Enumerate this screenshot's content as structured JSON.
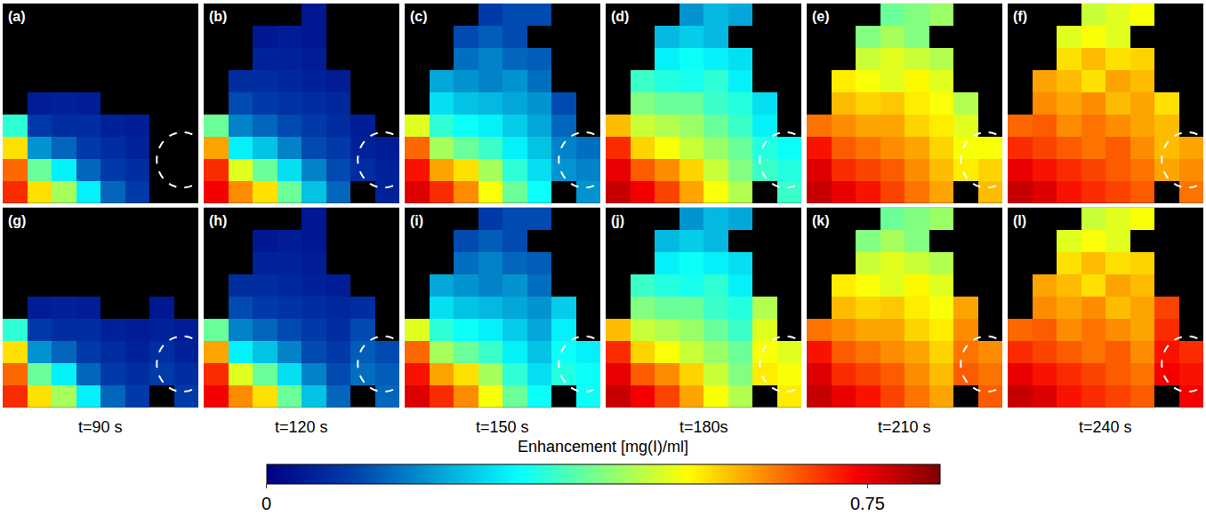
{
  "chart_data": {
    "type": "heatmap",
    "color": "Jet",
    "colorbar": {
      "title": "Enhancement [mg(I)/ml]",
      "range": [
        0,
        0.84
      ],
      "ticks": [
        0,
        0.75
      ]
    },
    "columns": [
      "t=90 s",
      "t=120 s",
      "t=150 s",
      "t=180s",
      "t=210 s",
      "t=240 s"
    ],
    "panels": [
      {
        "label": "(a)",
        "cells": [
          [
            null,
            null,
            null,
            null,
            null,
            null,
            null,
            null
          ],
          [
            null,
            null,
            null,
            null,
            null,
            null,
            null,
            null
          ],
          [
            null,
            null,
            null,
            null,
            null,
            null,
            null,
            null
          ],
          [
            null,
            null,
            null,
            null,
            null,
            null,
            null,
            null
          ],
          [
            null,
            0.05,
            0.06,
            0.05,
            null,
            null,
            null,
            null
          ],
          [
            0.35,
            0.1,
            0.08,
            0.08,
            0.06,
            0.05,
            null,
            null
          ],
          [
            0.55,
            0.2,
            0.15,
            0.1,
            0.08,
            0.06,
            null,
            null
          ],
          [
            0.65,
            0.4,
            0.3,
            0.15,
            0.1,
            0.08,
            null,
            null
          ],
          [
            0.7,
            0.55,
            0.45,
            0.3,
            0.15,
            0.1,
            null,
            null
          ]
        ]
      },
      {
        "label": "(b)",
        "cells": [
          [
            null,
            null,
            null,
            null,
            0.04,
            null,
            null,
            null
          ],
          [
            null,
            null,
            0.04,
            0.05,
            0.04,
            null,
            null,
            null
          ],
          [
            null,
            null,
            0.06,
            0.06,
            0.05,
            null,
            null,
            null
          ],
          [
            null,
            0.08,
            0.08,
            0.07,
            0.06,
            0.05,
            null,
            null
          ],
          [
            null,
            0.12,
            0.1,
            0.09,
            0.08,
            0.07,
            null,
            null
          ],
          [
            0.4,
            0.18,
            0.15,
            0.12,
            0.1,
            0.08,
            0.05,
            null
          ],
          [
            0.6,
            0.3,
            0.25,
            0.18,
            0.12,
            0.1,
            0.06,
            0.05
          ],
          [
            0.7,
            0.5,
            0.4,
            0.28,
            0.18,
            0.12,
            0.08,
            0.06
          ],
          [
            0.74,
            0.62,
            0.55,
            0.4,
            0.25,
            0.15,
            null,
            0.06
          ]
        ]
      },
      {
        "label": "(c)",
        "cells": [
          [
            null,
            null,
            null,
            0.1,
            0.12,
            0.12,
            null,
            null
          ],
          [
            null,
            null,
            0.12,
            0.14,
            0.12,
            null,
            null,
            null
          ],
          [
            null,
            null,
            0.16,
            0.18,
            0.15,
            0.14,
            null,
            null
          ],
          [
            null,
            0.22,
            0.2,
            0.18,
            0.2,
            0.16,
            null,
            null
          ],
          [
            null,
            0.28,
            0.25,
            0.24,
            0.22,
            0.2,
            0.12,
            null
          ],
          [
            0.5,
            0.35,
            0.32,
            0.3,
            0.26,
            0.22,
            0.15,
            null
          ],
          [
            0.65,
            0.45,
            0.4,
            0.36,
            0.3,
            0.25,
            0.18,
            0.16
          ],
          [
            0.72,
            0.6,
            0.55,
            0.45,
            0.35,
            0.28,
            0.2,
            0.18
          ],
          [
            0.76,
            0.7,
            0.62,
            0.52,
            0.4,
            0.32,
            null,
            0.2
          ]
        ]
      },
      {
        "label": "(d)",
        "cells": [
          [
            null,
            null,
            null,
            0.2,
            0.24,
            0.22,
            null,
            null
          ],
          [
            null,
            null,
            0.24,
            0.26,
            0.24,
            null,
            null,
            null
          ],
          [
            null,
            null,
            0.3,
            0.32,
            0.3,
            0.28,
            null,
            null
          ],
          [
            null,
            0.36,
            0.34,
            0.33,
            0.35,
            0.3,
            null,
            null
          ],
          [
            null,
            0.42,
            0.4,
            0.4,
            0.36,
            0.34,
            0.28,
            null
          ],
          [
            0.58,
            0.48,
            0.46,
            0.44,
            0.4,
            0.36,
            0.3,
            null
          ],
          [
            0.7,
            0.56,
            0.52,
            0.48,
            0.44,
            0.4,
            0.34,
            0.32
          ],
          [
            0.75,
            0.66,
            0.62,
            0.56,
            0.48,
            0.42,
            0.36,
            0.34
          ],
          [
            0.78,
            0.74,
            0.68,
            0.6,
            0.52,
            0.46,
            null,
            0.36
          ]
        ]
      },
      {
        "label": "(e)",
        "cells": [
          [
            null,
            null,
            null,
            0.4,
            0.42,
            0.44,
            null,
            null
          ],
          [
            null,
            null,
            0.42,
            0.45,
            0.42,
            null,
            null,
            null
          ],
          [
            null,
            null,
            0.48,
            0.5,
            0.48,
            0.46,
            null,
            null
          ],
          [
            null,
            0.54,
            0.52,
            0.5,
            0.53,
            0.5,
            null,
            null
          ],
          [
            null,
            0.58,
            0.56,
            0.57,
            0.54,
            0.52,
            0.46,
            null
          ],
          [
            0.64,
            0.62,
            0.6,
            0.6,
            0.56,
            0.54,
            0.5,
            null
          ],
          [
            0.72,
            0.66,
            0.64,
            0.62,
            0.6,
            0.56,
            0.52,
            0.52
          ],
          [
            0.76,
            0.7,
            0.68,
            0.66,
            0.62,
            0.58,
            0.54,
            0.56
          ],
          [
            0.78,
            0.75,
            0.72,
            0.68,
            0.64,
            0.6,
            null,
            0.58
          ]
        ]
      },
      {
        "label": "(f)",
        "cells": [
          [
            null,
            null,
            null,
            0.48,
            0.5,
            0.52,
            null,
            null
          ],
          [
            null,
            null,
            0.5,
            0.52,
            0.5,
            null,
            null,
            null
          ],
          [
            null,
            null,
            0.55,
            0.58,
            0.55,
            0.56,
            null,
            null
          ],
          [
            null,
            0.6,
            0.58,
            0.55,
            0.6,
            0.58,
            null,
            null
          ],
          [
            null,
            0.62,
            0.6,
            0.62,
            0.58,
            0.6,
            0.55,
            null
          ],
          [
            0.65,
            0.66,
            0.62,
            0.64,
            0.62,
            0.6,
            0.58,
            null
          ],
          [
            0.7,
            0.68,
            0.66,
            0.64,
            0.66,
            0.62,
            0.58,
            0.6
          ],
          [
            0.75,
            0.72,
            0.7,
            0.68,
            0.66,
            0.64,
            0.6,
            0.62
          ],
          [
            0.78,
            0.76,
            0.72,
            0.7,
            0.68,
            0.66,
            null,
            0.64
          ]
        ]
      },
      {
        "label": "(g)",
        "cells": [
          [
            null,
            null,
            null,
            null,
            null,
            null,
            null,
            null
          ],
          [
            null,
            null,
            null,
            null,
            null,
            null,
            null,
            null
          ],
          [
            null,
            null,
            null,
            null,
            null,
            null,
            null,
            null
          ],
          [
            null,
            null,
            null,
            null,
            null,
            null,
            null,
            null
          ],
          [
            null,
            0.05,
            0.06,
            0.05,
            null,
            null,
            0.04,
            null
          ],
          [
            0.35,
            0.1,
            0.08,
            0.08,
            0.06,
            0.05,
            0.06,
            0.05
          ],
          [
            0.55,
            0.2,
            0.15,
            0.1,
            0.08,
            0.06,
            0.08,
            0.06
          ],
          [
            0.65,
            0.4,
            0.3,
            0.15,
            0.1,
            0.08,
            0.1,
            0.08
          ],
          [
            0.7,
            0.55,
            0.45,
            0.3,
            0.15,
            0.1,
            null,
            0.1
          ]
        ]
      },
      {
        "label": "(h)",
        "cells": [
          [
            null,
            null,
            null,
            null,
            0.04,
            null,
            null,
            null
          ],
          [
            null,
            null,
            0.04,
            0.05,
            0.04,
            null,
            null,
            null
          ],
          [
            null,
            null,
            0.06,
            0.06,
            0.05,
            null,
            null,
            null
          ],
          [
            null,
            0.08,
            0.08,
            0.07,
            0.06,
            0.05,
            null,
            null
          ],
          [
            null,
            0.12,
            0.1,
            0.09,
            0.08,
            0.07,
            0.08,
            null
          ],
          [
            0.4,
            0.18,
            0.15,
            0.12,
            0.1,
            0.08,
            0.12,
            null
          ],
          [
            0.6,
            0.3,
            0.25,
            0.18,
            0.12,
            0.1,
            0.14,
            0.12
          ],
          [
            0.7,
            0.5,
            0.4,
            0.28,
            0.18,
            0.12,
            0.16,
            0.14
          ],
          [
            0.74,
            0.62,
            0.55,
            0.4,
            0.25,
            0.15,
            null,
            0.15
          ]
        ]
      },
      {
        "label": "(i)",
        "cells": [
          [
            null,
            null,
            null,
            0.1,
            0.12,
            0.12,
            null,
            null
          ],
          [
            null,
            null,
            0.12,
            0.14,
            0.12,
            null,
            null,
            null
          ],
          [
            null,
            null,
            0.16,
            0.18,
            0.15,
            0.14,
            null,
            null
          ],
          [
            null,
            0.22,
            0.2,
            0.18,
            0.2,
            0.16,
            null,
            null
          ],
          [
            null,
            0.28,
            0.25,
            0.24,
            0.22,
            0.2,
            0.26,
            null
          ],
          [
            0.5,
            0.35,
            0.32,
            0.3,
            0.26,
            0.22,
            0.3,
            null
          ],
          [
            0.65,
            0.45,
            0.4,
            0.36,
            0.3,
            0.25,
            0.32,
            0.3
          ],
          [
            0.72,
            0.6,
            0.55,
            0.45,
            0.35,
            0.28,
            0.34,
            0.32
          ],
          [
            0.76,
            0.7,
            0.62,
            0.52,
            0.4,
            0.32,
            null,
            0.32
          ]
        ]
      },
      {
        "label": "(j)",
        "cells": [
          [
            null,
            null,
            null,
            0.2,
            0.24,
            0.22,
            null,
            null
          ],
          [
            null,
            null,
            0.24,
            0.26,
            0.24,
            null,
            null,
            null
          ],
          [
            null,
            null,
            0.3,
            0.32,
            0.3,
            0.28,
            null,
            null
          ],
          [
            null,
            0.36,
            0.34,
            0.33,
            0.35,
            0.3,
            null,
            null
          ],
          [
            null,
            0.42,
            0.4,
            0.4,
            0.36,
            0.34,
            0.46,
            null
          ],
          [
            0.58,
            0.48,
            0.46,
            0.44,
            0.4,
            0.36,
            0.5,
            null
          ],
          [
            0.7,
            0.56,
            0.52,
            0.48,
            0.44,
            0.4,
            0.52,
            0.5
          ],
          [
            0.75,
            0.66,
            0.62,
            0.56,
            0.48,
            0.42,
            0.54,
            0.52
          ],
          [
            0.78,
            0.74,
            0.68,
            0.6,
            0.52,
            0.46,
            null,
            0.54
          ]
        ]
      },
      {
        "label": "(k)",
        "cells": [
          [
            null,
            null,
            null,
            0.4,
            0.42,
            0.44,
            null,
            null
          ],
          [
            null,
            null,
            0.42,
            0.45,
            0.42,
            null,
            null,
            null
          ],
          [
            null,
            null,
            0.48,
            0.5,
            0.48,
            0.46,
            null,
            null
          ],
          [
            null,
            0.54,
            0.52,
            0.5,
            0.53,
            0.5,
            null,
            null
          ],
          [
            null,
            0.58,
            0.56,
            0.57,
            0.54,
            0.52,
            0.6,
            null
          ],
          [
            0.64,
            0.62,
            0.6,
            0.6,
            0.56,
            0.54,
            0.62,
            null
          ],
          [
            0.72,
            0.66,
            0.64,
            0.62,
            0.6,
            0.56,
            0.64,
            0.62
          ],
          [
            0.76,
            0.7,
            0.68,
            0.66,
            0.62,
            0.58,
            0.66,
            0.64
          ],
          [
            0.78,
            0.75,
            0.72,
            0.68,
            0.64,
            0.6,
            null,
            0.66
          ]
        ]
      },
      {
        "label": "(l)",
        "cells": [
          [
            null,
            null,
            null,
            0.48,
            0.5,
            0.52,
            null,
            null
          ],
          [
            null,
            null,
            0.5,
            0.52,
            0.5,
            null,
            null,
            null
          ],
          [
            null,
            null,
            0.55,
            0.58,
            0.55,
            0.56,
            null,
            null
          ],
          [
            null,
            0.6,
            0.58,
            0.55,
            0.6,
            0.58,
            null,
            null
          ],
          [
            null,
            0.62,
            0.6,
            0.62,
            0.58,
            0.6,
            0.68,
            null
          ],
          [
            0.65,
            0.66,
            0.62,
            0.64,
            0.62,
            0.6,
            0.7,
            null
          ],
          [
            0.7,
            0.68,
            0.66,
            0.64,
            0.66,
            0.62,
            0.72,
            0.7
          ],
          [
            0.75,
            0.72,
            0.7,
            0.68,
            0.66,
            0.64,
            0.74,
            0.72
          ],
          [
            0.78,
            0.76,
            0.72,
            0.7,
            0.68,
            0.66,
            null,
            0.74
          ]
        ]
      }
    ]
  }
}
